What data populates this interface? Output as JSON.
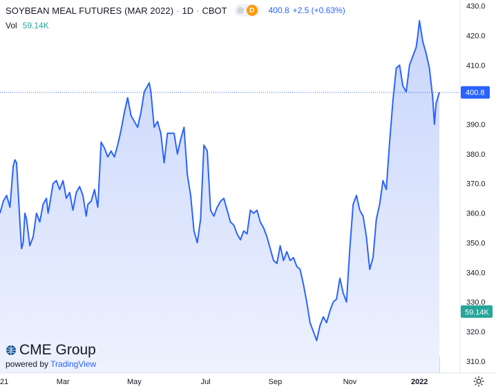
{
  "header": {
    "symbol_title": "SOYBEAN MEAL FUTURES (MAR 2022)",
    "interval": "1D",
    "exchange": "CBOT",
    "status_badge": "D",
    "last_price": "400.8",
    "change": "+2.5 (+0.63%)",
    "volume_label": "Vol",
    "volume_value": "59.14K"
  },
  "branding": {
    "logo_text": "CME Group",
    "powered_by": "powered by",
    "powered_brand": "TradingView"
  },
  "price_tag": "400.8",
  "volume_tag": "59.14K",
  "colors": {
    "line": "#2962ff",
    "area_top": "#c9d6fc",
    "area_bottom": "#eef2fe",
    "up_volume": "#26a69a",
    "down_volume": "#ef5350",
    "price_tag_bg": "#2962ff",
    "volume_tag_bg": "#26a69a"
  },
  "chart_data": {
    "type": "area",
    "title": "SOYBEAN MEAL FUTURES (MAR 2022)",
    "xlabel": "",
    "ylabel": "",
    "ylim": [
      306,
      432
    ],
    "y_ticks": [
      310,
      320,
      330,
      340,
      350,
      360,
      370,
      380,
      390,
      400,
      410,
      420,
      430
    ],
    "x_tick_labels": [
      "21",
      "Mar",
      "May",
      "Jul",
      "Sep",
      "Nov",
      "2022"
    ],
    "x_tick_index": [
      0,
      38,
      81,
      124,
      166,
      211,
      253
    ],
    "last_index": 265,
    "last_value": 400.8,
    "grid": false,
    "series": [
      {
        "kind": "price",
        "points": [
          [
            0,
            360
          ],
          [
            2,
            364
          ],
          [
            4,
            366
          ],
          [
            6,
            362
          ],
          [
            8,
            376
          ],
          [
            9,
            378
          ],
          [
            10,
            377
          ],
          [
            11,
            367
          ],
          [
            12,
            357
          ],
          [
            13,
            348
          ],
          [
            14,
            350
          ],
          [
            15,
            360
          ],
          [
            16,
            358
          ],
          [
            18,
            349
          ],
          [
            20,
            352
          ],
          [
            22,
            360
          ],
          [
            24,
            357
          ],
          [
            26,
            363
          ],
          [
            28,
            365
          ],
          [
            29,
            360
          ],
          [
            30,
            363
          ],
          [
            32,
            370
          ],
          [
            34,
            371
          ],
          [
            36,
            368
          ],
          [
            38,
            371
          ],
          [
            40,
            365
          ],
          [
            42,
            367
          ],
          [
            44,
            361
          ],
          [
            46,
            367
          ],
          [
            48,
            369
          ],
          [
            50,
            366
          ],
          [
            52,
            359
          ],
          [
            53,
            363
          ],
          [
            55,
            364
          ],
          [
            57,
            368
          ],
          [
            59,
            362
          ],
          [
            61,
            384
          ],
          [
            63,
            382
          ],
          [
            65,
            379
          ],
          [
            67,
            381
          ],
          [
            69,
            379
          ],
          [
            71,
            383
          ],
          [
            73,
            388
          ],
          [
            75,
            394
          ],
          [
            77,
            399
          ],
          [
            78,
            396
          ],
          [
            79,
            393
          ],
          [
            81,
            391
          ],
          [
            83,
            389
          ],
          [
            85,
            394
          ],
          [
            87,
            401
          ],
          [
            88,
            402
          ],
          [
            89,
            403
          ],
          [
            90,
            404
          ],
          [
            91,
            401
          ],
          [
            93,
            389
          ],
          [
            95,
            391
          ],
          [
            97,
            387
          ],
          [
            99,
            377
          ],
          [
            101,
            387
          ],
          [
            103,
            387
          ],
          [
            105,
            387
          ],
          [
            107,
            380
          ],
          [
            109,
            385
          ],
          [
            111,
            389
          ],
          [
            113,
            373
          ],
          [
            115,
            366
          ],
          [
            117,
            354
          ],
          [
            119,
            350
          ],
          [
            121,
            358
          ],
          [
            123,
            383
          ],
          [
            125,
            381
          ],
          [
            127,
            361
          ],
          [
            129,
            359
          ],
          [
            131,
            362
          ],
          [
            133,
            364
          ],
          [
            135,
            365
          ],
          [
            137,
            361
          ],
          [
            139,
            357
          ],
          [
            141,
            356
          ],
          [
            143,
            353
          ],
          [
            145,
            351
          ],
          [
            147,
            354
          ],
          [
            149,
            353
          ],
          [
            151,
            361
          ],
          [
            153,
            360
          ],
          [
            155,
            361
          ],
          [
            157,
            357
          ],
          [
            159,
            355
          ],
          [
            161,
            352
          ],
          [
            163,
            348
          ],
          [
            165,
            344
          ],
          [
            167,
            343
          ],
          [
            169,
            349
          ],
          [
            171,
            344
          ],
          [
            173,
            347
          ],
          [
            175,
            344
          ],
          [
            177,
            345
          ],
          [
            179,
            342
          ],
          [
            181,
            341
          ],
          [
            183,
            336
          ],
          [
            185,
            330
          ],
          [
            187,
            323
          ],
          [
            189,
            320
          ],
          [
            191,
            317
          ],
          [
            193,
            322
          ],
          [
            195,
            325
          ],
          [
            197,
            323
          ],
          [
            199,
            327
          ],
          [
            201,
            330
          ],
          [
            203,
            331
          ],
          [
            205,
            338
          ],
          [
            207,
            333
          ],
          [
            209,
            330
          ],
          [
            211,
            348
          ],
          [
            213,
            363
          ],
          [
            215,
            366
          ],
          [
            217,
            361
          ],
          [
            219,
            359
          ],
          [
            221,
            352
          ],
          [
            223,
            341
          ],
          [
            225,
            345
          ],
          [
            227,
            358
          ],
          [
            229,
            363
          ],
          [
            231,
            371
          ],
          [
            233,
            368
          ],
          [
            235,
            384
          ],
          [
            237,
            398
          ],
          [
            239,
            409
          ],
          [
            241,
            410
          ],
          [
            243,
            403
          ],
          [
            245,
            401
          ],
          [
            247,
            410
          ],
          [
            249,
            413
          ],
          [
            251,
            416
          ],
          [
            252,
            420
          ],
          [
            253,
            425
          ],
          [
            255,
            418
          ],
          [
            257,
            414
          ],
          [
            259,
            409
          ],
          [
            261,
            399
          ],
          [
            262,
            390
          ],
          [
            263,
            397
          ],
          [
            265,
            400.8
          ]
        ]
      },
      {
        "kind": "volume",
        "v_max": 1000,
        "bars": [
          [
            40,
            3,
            1
          ],
          [
            60,
            4,
            0
          ],
          [
            80,
            5,
            1
          ],
          [
            100,
            4,
            0
          ],
          [
            118,
            5,
            1
          ],
          [
            128,
            4,
            0
          ],
          [
            140,
            6,
            1
          ],
          [
            150,
            10,
            0
          ],
          [
            154,
            12,
            1
          ],
          [
            158,
            14,
            0
          ],
          [
            160,
            15,
            1
          ],
          [
            164,
            17,
            0
          ],
          [
            168,
            19,
            1
          ],
          [
            170,
            21,
            1
          ],
          [
            172,
            22,
            0
          ],
          [
            174,
            26,
            1
          ],
          [
            176,
            24,
            0
          ],
          [
            178,
            30,
            1
          ],
          [
            180,
            32,
            1
          ],
          [
            182,
            28,
            0
          ],
          [
            184,
            38,
            1
          ],
          [
            186,
            42,
            1
          ],
          [
            188,
            36,
            0
          ],
          [
            190,
            48,
            1
          ],
          [
            192,
            44,
            1
          ],
          [
            194,
            40,
            0
          ],
          [
            196,
            52,
            1
          ],
          [
            198,
            46,
            0
          ],
          [
            200,
            58,
            1
          ],
          [
            202,
            50,
            1
          ],
          [
            204,
            62,
            0
          ],
          [
            206,
            56,
            1
          ],
          [
            208,
            70,
            1
          ],
          [
            210,
            64,
            0
          ],
          [
            212,
            80,
            1
          ],
          [
            214,
            72,
            1
          ],
          [
            216,
            66,
            0
          ],
          [
            218,
            78,
            1
          ],
          [
            220,
            74,
            0
          ],
          [
            222,
            84,
            1
          ],
          [
            224,
            80,
            1
          ],
          [
            226,
            88,
            0
          ],
          [
            228,
            82,
            1
          ],
          [
            230,
            110,
            1
          ],
          [
            232,
            96,
            0
          ],
          [
            234,
            120,
            1
          ],
          [
            236,
            104,
            1
          ],
          [
            238,
            118,
            0
          ],
          [
            240,
            130,
            1
          ],
          [
            242,
            112,
            1
          ],
          [
            244,
            140,
            0
          ],
          [
            246,
            128,
            1
          ],
          [
            248,
            150,
            1
          ],
          [
            250,
            160,
            0
          ],
          [
            252,
            180,
            1
          ],
          [
            253,
            240,
            1
          ],
          [
            255,
            168,
            0
          ],
          [
            257,
            196,
            1
          ],
          [
            259,
            176,
            0
          ],
          [
            261,
            184,
            0
          ],
          [
            263,
            170,
            1
          ],
          [
            265,
            156,
            1
          ]
        ]
      }
    ]
  }
}
